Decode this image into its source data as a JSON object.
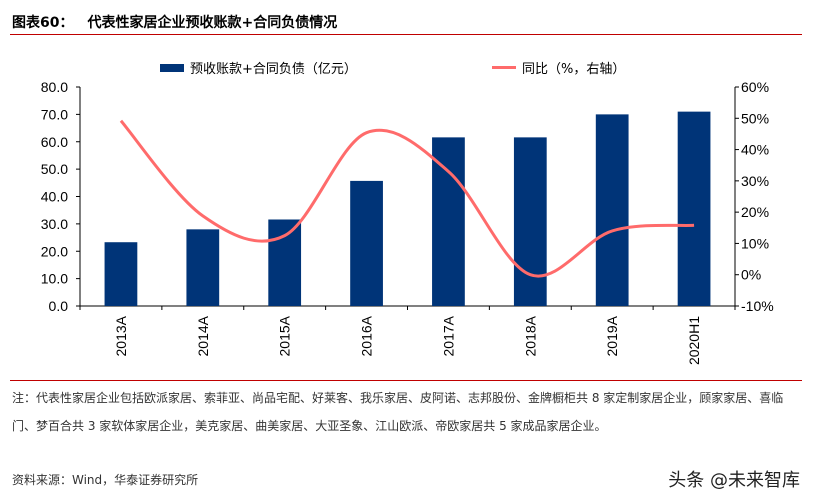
{
  "title": {
    "label": "图表60：",
    "text": "代表性家居企业预收账款+合同负债情况"
  },
  "chart_data": {
    "type": "bar+line",
    "categories": [
      "2013A",
      "2014A",
      "2015A",
      "2016A",
      "2017A",
      "2018A",
      "2019A",
      "2020H1"
    ],
    "series": [
      {
        "name": "预收账款+合同负债（亿元）",
        "type": "bar",
        "axis": "left",
        "color": "#003478",
        "values": [
          23.3,
          28.0,
          31.6,
          45.7,
          61.6,
          61.6,
          70.0,
          71.0
        ]
      },
      {
        "name": "同比（%，右轴）",
        "type": "line",
        "axis": "right",
        "color": "#ff6b6b",
        "values": [
          49.2,
          18.8,
          12.5,
          45.4,
          33.0,
          0.0,
          14.0,
          15.8
        ]
      }
    ],
    "left_axis": {
      "ylim": [
        0,
        80
      ],
      "ticks": [
        "0.0",
        "10.0",
        "20.0",
        "30.0",
        "40.0",
        "50.0",
        "60.0",
        "70.0",
        "80.0"
      ]
    },
    "right_axis": {
      "ylim": [
        -10,
        60
      ],
      "ticks": [
        "-10%",
        "0%",
        "10%",
        "20%",
        "30%",
        "40%",
        "50%",
        "60%"
      ]
    },
    "legend": "top",
    "grid": false
  },
  "notes": {
    "note": "注：代表性家居企业包括欧派家居、索菲亚、尚品宅配、好莱客、我乐家居、皮阿诺、志邦股份、金牌橱柜共 8 家定制家居企业，顾家家居、喜临门、梦百合共 3 家软体家居企业，美克家居、曲美家居、大亚圣象、江山欧派、帝欧家居共 5 家成品家居企业。",
    "source": "资料来源：Wind，华泰证券研究所"
  },
  "watermark": "头条 @未来智库"
}
